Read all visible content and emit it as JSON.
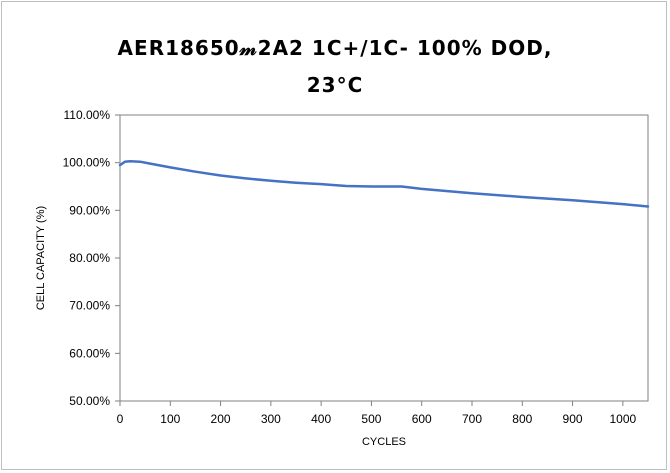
{
  "chart_data": {
    "type": "line",
    "title_line1": "AER18650𝓂2A2 1C+/1C- 100% DOD,",
    "title_line2": "23°C",
    "xlabel": "CYCLES",
    "ylabel": "CELL CAPACITY (%)",
    "xlim": [
      0,
      1050
    ],
    "ylim": [
      0.5,
      1.1
    ],
    "x_ticks": [
      0,
      100,
      200,
      300,
      400,
      500,
      600,
      700,
      800,
      900,
      1000
    ],
    "y_ticks": [
      0.5,
      0.6,
      0.7,
      0.8,
      0.9,
      1.0,
      1.1
    ],
    "y_tick_labels": [
      "50.00%",
      "60.00%",
      "70.00%",
      "80.00%",
      "90.00%",
      "100.00%",
      "110.00%"
    ],
    "grid": false,
    "legend": "none",
    "series": [
      {
        "color": "#4472c4",
        "x": [
          0,
          10,
          20,
          40,
          60,
          100,
          150,
          200,
          250,
          300,
          350,
          400,
          450,
          500,
          560,
          600,
          700,
          800,
          900,
          1000,
          1050
        ],
        "y": [
          0.995,
          1.002,
          1.003,
          1.002,
          0.998,
          0.99,
          0.981,
          0.973,
          0.967,
          0.962,
          0.958,
          0.955,
          0.951,
          0.95,
          0.95,
          0.945,
          0.936,
          0.928,
          0.921,
          0.913,
          0.908
        ]
      }
    ]
  }
}
